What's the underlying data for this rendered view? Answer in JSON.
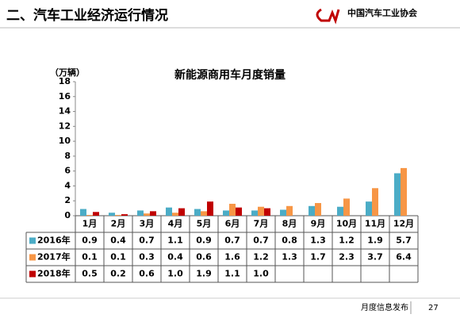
{
  "header": {
    "title": "二、汽车工业经济运行情况",
    "org": "中国汽车工业协会"
  },
  "footer": {
    "label": "月度信息发布",
    "page": "27"
  },
  "chart_data": {
    "type": "bar",
    "title": "新能源商用车月度销量",
    "y_label": "（万辆）",
    "categories": [
      "1月",
      "2月",
      "3月",
      "4月",
      "5月",
      "6月",
      "7月",
      "8月",
      "9月",
      "10月",
      "11月",
      "12月"
    ],
    "series": [
      {
        "name": "2016年",
        "color": "#4bacc6",
        "values": [
          0.9,
          0.4,
          0.7,
          1.1,
          0.9,
          0.7,
          0.7,
          0.8,
          1.3,
          1.2,
          1.9,
          5.7
        ],
        "value_labels": [
          "0.9",
          "0.4",
          "0.7",
          "1.1",
          "0.9",
          "0.7",
          "0.7",
          "0.8",
          "1.3",
          "1.2",
          "1.9",
          "5.7"
        ]
      },
      {
        "name": "2017年",
        "color": "#f79646",
        "values": [
          0.1,
          0.1,
          0.3,
          0.4,
          0.6,
          1.6,
          1.2,
          1.3,
          1.7,
          2.3,
          3.7,
          6.4
        ],
        "value_labels": [
          "0.1",
          "0.1",
          "0.3",
          "0.4",
          "0.6",
          "1.6",
          "1.2",
          "1.3",
          "1.7",
          "2.3",
          "3.7",
          "6.4"
        ]
      },
      {
        "name": "2018年",
        "color": "#c00000",
        "values": [
          0.5,
          0.2,
          0.6,
          1.0,
          1.9,
          1.1,
          1.0,
          null,
          null,
          null,
          null,
          null
        ],
        "value_labels": [
          "0.5",
          "0.2",
          "0.6",
          "1.0",
          "1.9",
          "1.1",
          "1.0",
          null,
          null,
          null,
          null,
          null
        ]
      }
    ],
    "ylim": [
      0,
      18
    ],
    "yticks": [
      0,
      2,
      4,
      6,
      8,
      10,
      12,
      14,
      16,
      18
    ]
  }
}
